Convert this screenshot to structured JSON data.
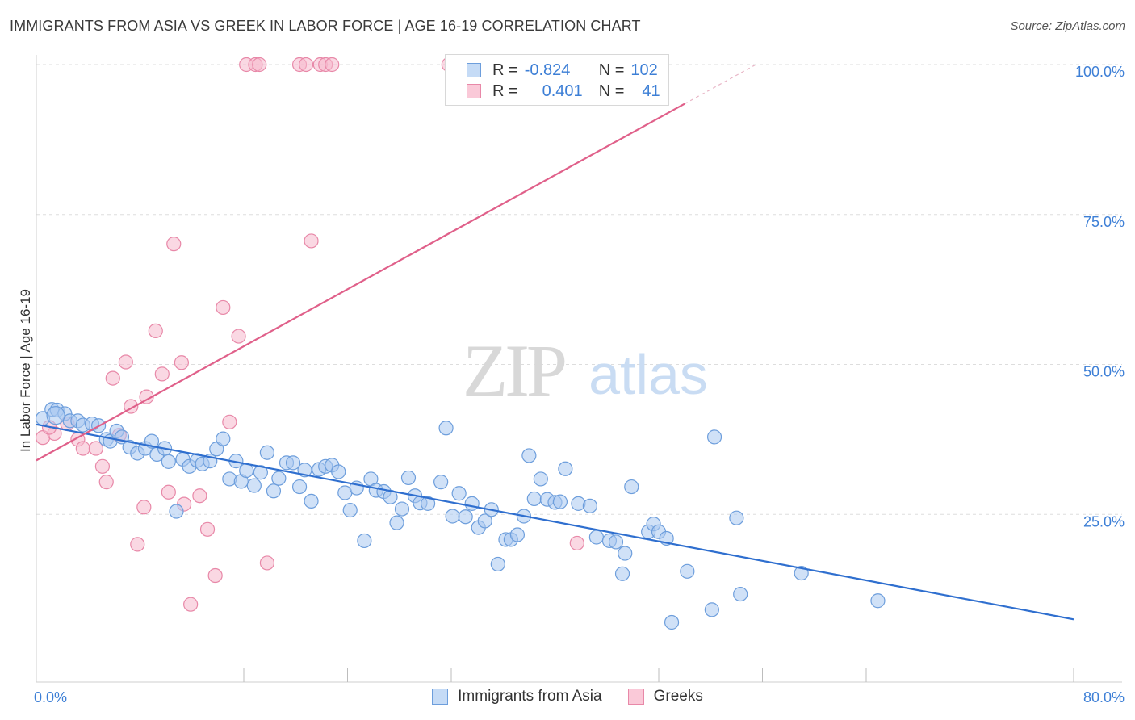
{
  "title": "IMMIGRANTS FROM ASIA VS GREEK IN LABOR FORCE | AGE 16-19 CORRELATION CHART",
  "source": "Source: ZipAtlas.com",
  "watermark": {
    "zip": "ZIP",
    "atlas": "atlas"
  },
  "legend": {
    "rows": [
      {
        "r_label": "R =",
        "r_value": "-0.824",
        "n_label": "N =",
        "n_value": "102"
      },
      {
        "r_label": "R =",
        "r_value": "0.401",
        "n_label": "N =",
        "n_value": "41"
      }
    ]
  },
  "colors": {
    "blue_fill": "#aac8f0",
    "blue_stroke": "#6d9edc",
    "blue_line": "#2f6fcf",
    "pink_fill": "#f5b8cc",
    "pink_stroke": "#e888a8",
    "pink_line": "#e0608a",
    "tick_text": "#3d7fd6",
    "grid": "#dddddd"
  },
  "chart_data": {
    "type": "scatter",
    "xlabel": "",
    "ylabel": "In Labor Force | Age 16-19",
    "xlim": [
      0,
      80
    ],
    "ylim": [
      0,
      100
    ],
    "x_tick_labels": [
      {
        "value": 0,
        "label": "0.0%"
      },
      {
        "value": 80,
        "label": "80.0%"
      }
    ],
    "y_tick_labels": [
      {
        "value": 25,
        "label": "25.0%"
      },
      {
        "value": 50,
        "label": "50.0%"
      },
      {
        "value": 75,
        "label": "75.0%"
      },
      {
        "value": 100,
        "label": "100.0%"
      }
    ],
    "series": [
      {
        "name": "Immigrants from Asia",
        "color": "blue",
        "r": -0.824,
        "n": 102,
        "trend": {
          "x0": 0,
          "y0": 40,
          "x1": 80,
          "y1": 7.5,
          "solid_to": 80
        },
        "points": [
          [
            0.5,
            41
          ],
          [
            1.2,
            42.5
          ],
          [
            1.6,
            42.4
          ],
          [
            2.2,
            41.8
          ],
          [
            2.6,
            40.6
          ],
          [
            3.2,
            40.6
          ],
          [
            3.6,
            39.9
          ],
          [
            4.3,
            40.1
          ],
          [
            4.8,
            39.8
          ],
          [
            5.4,
            37.5
          ],
          [
            5.7,
            37.2
          ],
          [
            6.2,
            38.9
          ],
          [
            6.6,
            37.9
          ],
          [
            7.2,
            36.2
          ],
          [
            7.8,
            35.2
          ],
          [
            8.4,
            36
          ],
          [
            8.9,
            37.2
          ],
          [
            9.3,
            35
          ],
          [
            9.9,
            36
          ],
          [
            10.2,
            33.8
          ],
          [
            10.8,
            25.5
          ],
          [
            11.3,
            34.2
          ],
          [
            11.8,
            33
          ],
          [
            12.4,
            34
          ],
          [
            12.8,
            33.4
          ],
          [
            13.4,
            33.9
          ],
          [
            13.9,
            35.9
          ],
          [
            14.4,
            37.6
          ],
          [
            14.9,
            30.9
          ],
          [
            15.4,
            33.9
          ],
          [
            15.8,
            30.5
          ],
          [
            16.2,
            32.3
          ],
          [
            16.8,
            29.8
          ],
          [
            17.3,
            32
          ],
          [
            17.8,
            35.3
          ],
          [
            18.3,
            28.9
          ],
          [
            18.7,
            31
          ],
          [
            19.3,
            33.6
          ],
          [
            19.8,
            33.6
          ],
          [
            20.3,
            29.6
          ],
          [
            20.7,
            32.4
          ],
          [
            21.2,
            27.2
          ],
          [
            21.8,
            32.5
          ],
          [
            22.3,
            33
          ],
          [
            22.8,
            33.2
          ],
          [
            23.3,
            32.1
          ],
          [
            23.8,
            28.6
          ],
          [
            24.2,
            25.7
          ],
          [
            24.7,
            29.4
          ],
          [
            25.3,
            20.6
          ],
          [
            25.8,
            30.9
          ],
          [
            26.2,
            29
          ],
          [
            26.8,
            28.8
          ],
          [
            27.3,
            27.9
          ],
          [
            27.8,
            23.6
          ],
          [
            28.2,
            25.9
          ],
          [
            28.7,
            31.1
          ],
          [
            29.2,
            28.1
          ],
          [
            29.6,
            26.9
          ],
          [
            30.2,
            26.8
          ],
          [
            31.2,
            30.4
          ],
          [
            31.6,
            39.4
          ],
          [
            32.1,
            24.7
          ],
          [
            32.6,
            28.5
          ],
          [
            33.1,
            24.6
          ],
          [
            33.6,
            26.8
          ],
          [
            34.1,
            22.8
          ],
          [
            34.6,
            23.9
          ],
          [
            35.1,
            25.8
          ],
          [
            35.6,
            16.7
          ],
          [
            36.2,
            20.8
          ],
          [
            36.6,
            20.8
          ],
          [
            37.1,
            21.6
          ],
          [
            37.6,
            24.7
          ],
          [
            38,
            34.8
          ],
          [
            38.4,
            27.6
          ],
          [
            38.9,
            30.9
          ],
          [
            39.4,
            27.5
          ],
          [
            40,
            27
          ],
          [
            40.4,
            27.1
          ],
          [
            40.8,
            32.6
          ],
          [
            41.8,
            26.8
          ],
          [
            42.7,
            26.4
          ],
          [
            43.2,
            21.2
          ],
          [
            44.2,
            20.6
          ],
          [
            44.7,
            20.4
          ],
          [
            45.2,
            15.1
          ],
          [
            45.4,
            18.5
          ],
          [
            45.9,
            29.6
          ],
          [
            47.2,
            22.1
          ],
          [
            47.6,
            23.4
          ],
          [
            48,
            22.1
          ],
          [
            48.6,
            21
          ],
          [
            49,
            7
          ],
          [
            50.2,
            15.5
          ],
          [
            52.1,
            9.1
          ],
          [
            52.3,
            37.9
          ],
          [
            54,
            24.4
          ],
          [
            54.3,
            11.7
          ],
          [
            59,
            15.2
          ],
          [
            64.9,
            10.6
          ],
          [
            1.5,
            41.5
          ]
        ]
      },
      {
        "name": "Greeks",
        "color": "pink",
        "r": 0.401,
        "n": 41,
        "trend": {
          "x0": 0,
          "y0": 34,
          "x1": 55.5,
          "y1": 100,
          "solid_to": 50
        },
        "points": [
          [
            0.5,
            37.8
          ],
          [
            1.4,
            38.5
          ],
          [
            2.4,
            40.1
          ],
          [
            3.2,
            37.5
          ],
          [
            3.6,
            36
          ],
          [
            4.6,
            36
          ],
          [
            5.1,
            33
          ],
          [
            5.4,
            30.4
          ],
          [
            5.9,
            47.7
          ],
          [
            6.4,
            38.2
          ],
          [
            6.9,
            50.4
          ],
          [
            7.3,
            43
          ],
          [
            7.8,
            20
          ],
          [
            8.3,
            26.2
          ],
          [
            8.5,
            44.6
          ],
          [
            9.2,
            55.6
          ],
          [
            9.7,
            48.4
          ],
          [
            10.2,
            28.7
          ],
          [
            10.6,
            70.1
          ],
          [
            11.2,
            50.3
          ],
          [
            11.4,
            26.7
          ],
          [
            11.9,
            10
          ],
          [
            12.6,
            28.1
          ],
          [
            13.2,
            22.5
          ],
          [
            13.8,
            14.8
          ],
          [
            14.4,
            59.5
          ],
          [
            14.9,
            40.4
          ],
          [
            15.6,
            54.7
          ],
          [
            16.2,
            100
          ],
          [
            16.9,
            100
          ],
          [
            17.2,
            100
          ],
          [
            17.8,
            16.9
          ],
          [
            20.3,
            100
          ],
          [
            20.8,
            100
          ],
          [
            21.2,
            70.6
          ],
          [
            21.9,
            100
          ],
          [
            22.3,
            100
          ],
          [
            22.8,
            100
          ],
          [
            31.8,
            100
          ],
          [
            41.7,
            20.2
          ],
          [
            1.0,
            39.5
          ]
        ]
      }
    ]
  }
}
